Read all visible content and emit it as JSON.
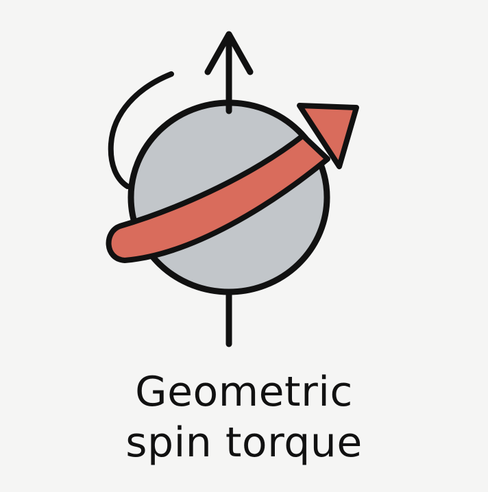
{
  "caption": {
    "line1": "Geometric",
    "line2": "spin torque"
  },
  "icons": {
    "main": "spin-torque-icon",
    "axis": "spin-axis-arrow-icon",
    "sphere": "sphere-icon",
    "rotation": "rotation-arc-icon",
    "torque": "torque-arrow-icon"
  },
  "colors": {
    "background": "#f5f5f4",
    "sphere_fill": "#c2c6ca",
    "torque_fill": "#d96c5c",
    "outline": "#111111"
  }
}
